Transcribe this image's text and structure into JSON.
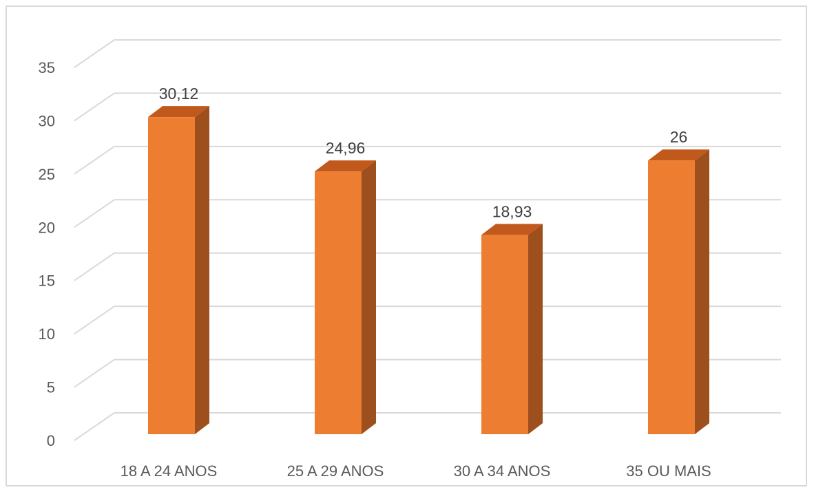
{
  "chart_data": {
    "type": "bar",
    "style": "3d-column",
    "categories": [
      "18 A 24 ANOS",
      "25 A 29 ANOS",
      "30 A 34 ANOS",
      "35 OU MAIS"
    ],
    "values": [
      30.12,
      24.96,
      18.93,
      26
    ],
    "data_labels": [
      "30,12",
      "24,96",
      "18,93",
      "26"
    ],
    "ylim": [
      0,
      35
    ],
    "yticks": [
      "0",
      "5",
      "10",
      "15",
      "20",
      "25",
      "30",
      "35"
    ],
    "title": "",
    "xlabel": "",
    "ylabel": "",
    "grid": true,
    "legend": "none",
    "colors": {
      "bar_front": "#ED7D31",
      "bar_side": "#9E4F1E",
      "bar_top": "#C2591C",
      "grid": "#d9d9d9",
      "text": "#595959"
    }
  }
}
